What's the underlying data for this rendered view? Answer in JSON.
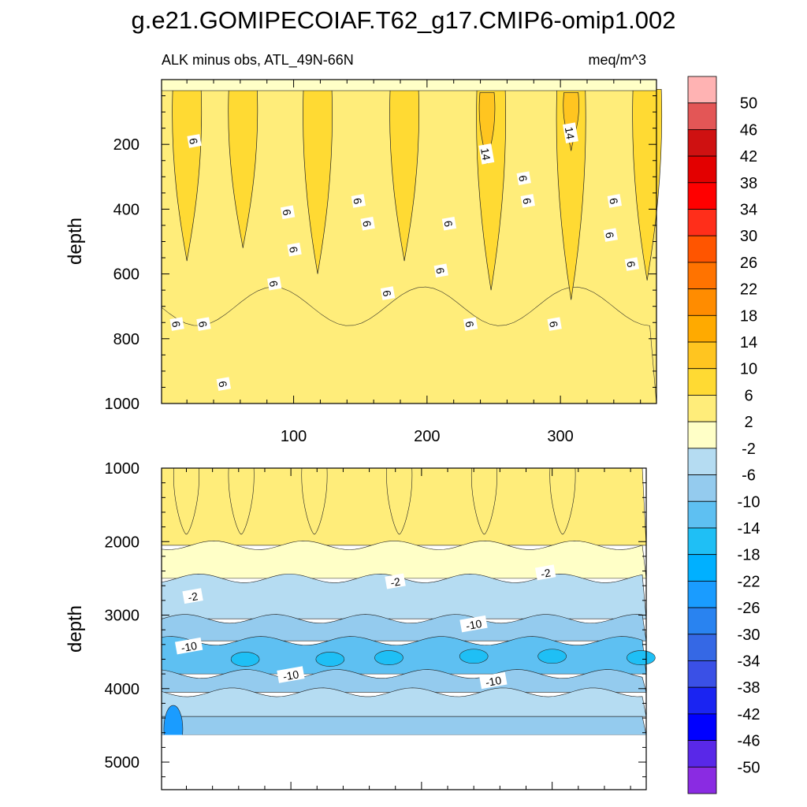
{
  "title": "g.e21.GOMIPECOIAF.T62_g17.CMIP6-omip1.002",
  "chart_data": [
    {
      "type": "heatmap",
      "subtitle_left": "ALK minus obs, ATL_49N-66N",
      "subtitle_right": "meq/m^3",
      "ylabel": "depth",
      "xlabel": "",
      "xlim": [
        1,
        372
      ],
      "ylim": [
        0,
        1000
      ],
      "y_reversed": true,
      "x_ticks": [
        100,
        200,
        300
      ],
      "x_tick_labels": [
        "100",
        "200",
        "300"
      ],
      "y_ticks": [
        200,
        400,
        600,
        800,
        1000
      ],
      "y_tick_labels": [
        "200",
        "400",
        "600",
        "800",
        "1000"
      ],
      "background_level": 6,
      "bands": [
        {
          "x": 20,
          "value": 10,
          "top": 30,
          "bottom": 560
        },
        {
          "x": 62,
          "value": 10,
          "top": 30,
          "bottom": 520
        },
        {
          "x": 118,
          "value": 10,
          "top": 30,
          "bottom": 600
        },
        {
          "x": 183,
          "value": 10,
          "top": 30,
          "bottom": 560
        },
        {
          "x": 248,
          "value": 10,
          "top": 30,
          "bottom": 650
        },
        {
          "x": 308,
          "value": 10,
          "top": 30,
          "bottom": 680
        },
        {
          "x": 365,
          "value": 10,
          "top": 30,
          "bottom": 620
        },
        {
          "x": 245,
          "value": 14,
          "top": 40,
          "bottom": 260
        },
        {
          "x": 308,
          "value": 14,
          "top": 40,
          "bottom": 220
        }
      ],
      "contour_labels": [
        {
          "x": 25,
          "y": 190,
          "text": "6"
        },
        {
          "x": 95,
          "y": 410,
          "text": "6"
        },
        {
          "x": 100,
          "y": 525,
          "text": "6"
        },
        {
          "x": 85,
          "y": 630,
          "text": "6"
        },
        {
          "x": 12,
          "y": 755,
          "text": "6"
        },
        {
          "x": 32,
          "y": 755,
          "text": "6"
        },
        {
          "x": 47,
          "y": 940,
          "text": "6"
        },
        {
          "x": 148,
          "y": 375,
          "text": "6"
        },
        {
          "x": 155,
          "y": 445,
          "text": "6"
        },
        {
          "x": 170,
          "y": 660,
          "text": "6"
        },
        {
          "x": 216,
          "y": 445,
          "text": "6"
        },
        {
          "x": 210,
          "y": 590,
          "text": "6"
        },
        {
          "x": 232,
          "y": 755,
          "text": "6"
        },
        {
          "x": 244,
          "y": 230,
          "text": "14"
        },
        {
          "x": 272,
          "y": 305,
          "text": "6"
        },
        {
          "x": 275,
          "y": 375,
          "text": "6"
        },
        {
          "x": 295,
          "y": 755,
          "text": "6"
        },
        {
          "x": 307,
          "y": 165,
          "text": "14"
        },
        {
          "x": 340,
          "y": 375,
          "text": "6"
        },
        {
          "x": 337,
          "y": 480,
          "text": "6"
        },
        {
          "x": 353,
          "y": 570,
          "text": "6"
        }
      ]
    },
    {
      "type": "heatmap",
      "ylabel": "depth",
      "xlabel": "",
      "xlim": [
        1,
        372
      ],
      "ylim": [
        1000,
        5375
      ],
      "y_reversed": true,
      "x_ticks": [
        100,
        200,
        300
      ],
      "y_ticks": [
        1000,
        2000,
        3000,
        4000,
        5000
      ],
      "y_tick_labels": [
        "1000",
        "2000",
        "3000",
        "4000",
        "5000"
      ],
      "missing_below_depth": 4630,
      "layers": [
        {
          "value": 4,
          "top": 1000,
          "bottom": 2050
        },
        {
          "value": 0,
          "top": 2050,
          "bottom": 2500
        },
        {
          "value": -4,
          "top": 2500,
          "bottom": 3050
        },
        {
          "value": -8,
          "top": 3050,
          "bottom": 3350
        },
        {
          "value": -12,
          "top": 3350,
          "bottom": 3800
        },
        {
          "value": -8,
          "top": 3800,
          "bottom": 4050
        },
        {
          "value": -4,
          "top": 4050,
          "bottom": 4380
        },
        {
          "value": -8,
          "top": 4380,
          "bottom": 4630
        }
      ],
      "patches": [
        {
          "x": 65,
          "depth": 3600,
          "value": -16
        },
        {
          "x": 130,
          "depth": 3600,
          "value": -16
        },
        {
          "x": 175,
          "depth": 3580,
          "value": -16
        },
        {
          "x": 240,
          "depth": 3560,
          "value": -16
        },
        {
          "x": 300,
          "depth": 3560,
          "value": -16
        },
        {
          "x": 368,
          "depth": 3580,
          "value": -16
        },
        {
          "x": 10,
          "depth": 4550,
          "value": -24
        }
      ],
      "contour_labels": [
        {
          "x": 25,
          "y": 2750,
          "text": "-2"
        },
        {
          "x": 180,
          "y": 2550,
          "text": "-2"
        },
        {
          "x": 295,
          "y": 2430,
          "text": "-2"
        },
        {
          "x": 22,
          "y": 3430,
          "text": "-10"
        },
        {
          "x": 240,
          "y": 3130,
          "text": "-10"
        },
        {
          "x": 100,
          "y": 3820,
          "text": "-10"
        },
        {
          "x": 255,
          "y": 3900,
          "text": "-10"
        }
      ]
    }
  ],
  "colorbar": {
    "labels": [
      "50",
      "46",
      "42",
      "38",
      "34",
      "30",
      "26",
      "22",
      "18",
      "14",
      "10",
      "6",
      "2",
      "-2",
      "-6",
      "-10",
      "-14",
      "-18",
      "-22",
      "-26",
      "-30",
      "-34",
      "-38",
      "-42",
      "-46",
      "-50"
    ],
    "colors": [
      "#FFB3B3",
      "#E35656",
      "#CF1111",
      "#E30000",
      "#FF0000",
      "#FF2E1A",
      "#FF5500",
      "#FF7300",
      "#FF8C00",
      "#FFAA00",
      "#FFC520",
      "#FFDA33",
      "#FFED7A",
      "#FFFFC7",
      "#B5DCF2",
      "#94CBEE",
      "#5EC0F2",
      "#1FBFF5",
      "#00B0FF",
      "#1A9CFF",
      "#2983F0",
      "#3568E5",
      "#3A50E6",
      "#1A24F2",
      "#0000FF",
      "#5928E8",
      "#8A2BE2"
    ]
  }
}
